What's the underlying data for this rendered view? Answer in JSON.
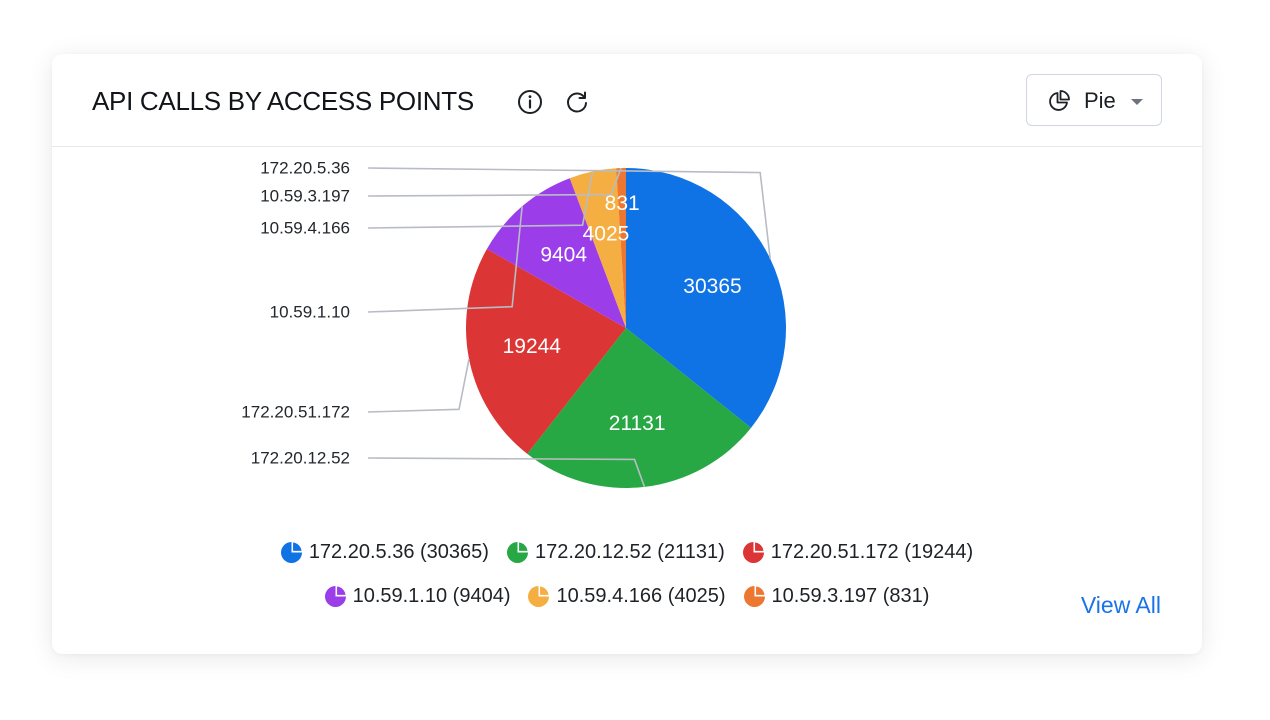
{
  "header": {
    "title": "API CALLS BY ACCESS POINTS",
    "info_icon": "info-icon",
    "refresh_icon": "refresh-icon"
  },
  "chart_type_select": {
    "icon": "pie-chart-icon",
    "selected": "Pie"
  },
  "footer": {
    "view_all": "View All"
  },
  "chart_data": {
    "type": "pie",
    "title": "API CALLS BY ACCESS POINTS",
    "slices": [
      {
        "label": "172.20.5.36",
        "value": 30365,
        "color": "#0f73e6",
        "legend": "172.20.5.36 (30365)"
      },
      {
        "label": "172.20.12.52",
        "value": 21131,
        "color": "#27a844",
        "legend": "172.20.12.52 (21131)"
      },
      {
        "label": "172.20.51.172",
        "value": 19244,
        "color": "#db3535",
        "legend": "172.20.51.172 (19244)"
      },
      {
        "label": "10.59.1.10",
        "value": 9404,
        "color": "#9b3eea",
        "legend": "10.59.1.10 (9404)"
      },
      {
        "label": "10.59.4.166",
        "value": 4025,
        "color": "#f5ae42",
        "legend": "10.59.4.166 (4025)"
      },
      {
        "label": "10.59.3.197",
        "value": 831,
        "color": "#ed7731",
        "legend": "10.59.3.197 (831)"
      }
    ],
    "outside_labels_order": [
      "172.20.5.36",
      "10.59.3.197",
      "10.59.4.166",
      "10.59.1.10",
      "172.20.51.172",
      "172.20.12.52"
    ],
    "legend_position": "bottom",
    "legend_rows": [
      [
        0,
        1,
        2
      ],
      [
        3,
        4,
        5
      ]
    ]
  }
}
